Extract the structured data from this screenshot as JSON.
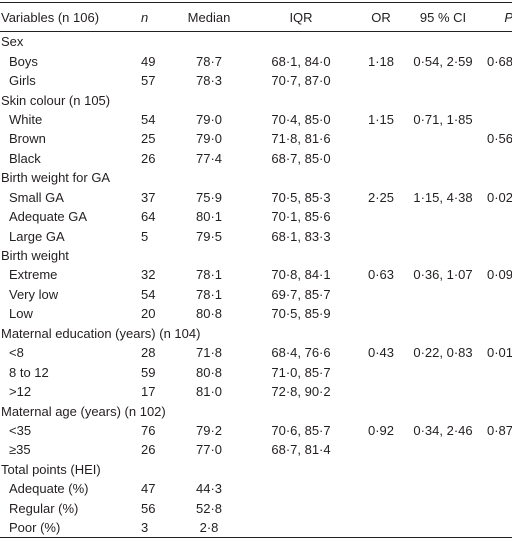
{
  "table": {
    "header": [
      "Variables (n 106)",
      "n",
      "Median",
      "IQR",
      "OR",
      "95 % CI",
      "P"
    ],
    "rows": [
      {
        "label": "Sex"
      },
      {
        "label": "Boys",
        "n": "49",
        "median": "78·7",
        "iqr": "68·1, 84·0",
        "or": "1·18",
        "ci": "0·54, 2·59",
        "p": "0·68"
      },
      {
        "label": "Girls",
        "n": "57",
        "median": "78·3",
        "iqr": "70·7, 87·0"
      },
      {
        "label": "Skin colour (n 105)"
      },
      {
        "label": "White",
        "n": "54",
        "median": "79·0",
        "iqr": "70·4, 85·0",
        "or": "1·15",
        "ci": "0·71, 1·85"
      },
      {
        "label": "Brown",
        "n": "25",
        "median": "79·0",
        "iqr": "71·8, 81·6",
        "p": "0·56"
      },
      {
        "label": "Black",
        "n": "26",
        "median": "77·4",
        "iqr": "68·7, 85·0"
      },
      {
        "label": "Birth weight for GA"
      },
      {
        "label": "Small GA",
        "n": "37",
        "median": "75·9",
        "iqr": "70·5, 85·3",
        "or": "2·25",
        "ci": "1·15, 4·38",
        "p": "0·02"
      },
      {
        "label": "Adequate GA",
        "n": "64",
        "median": "80·1",
        "iqr": "70·1, 85·6"
      },
      {
        "label": "Large GA",
        "n": "5",
        "median": "79·5",
        "iqr": "68·1, 83·3"
      },
      {
        "label": "Birth weight"
      },
      {
        "label": "Extreme",
        "n": "32",
        "median": "78·1",
        "iqr": "70·8, 84·1",
        "or": "0·63",
        "ci": "0·36, 1·07",
        "p": "0·09"
      },
      {
        "label": "Very low",
        "n": "54",
        "median": "78·1",
        "iqr": "69·7, 85·7"
      },
      {
        "label": "Low",
        "n": "20",
        "median": "80·8",
        "iqr": "70·5, 85·9"
      },
      {
        "label": "Maternal education (years) (n 104)"
      },
      {
        "label": "<8",
        "n": "28",
        "median": "71·8",
        "iqr": "68·4, 76·6",
        "or": "0·43",
        "ci": "0·22, 0·83",
        "p": "0·01"
      },
      {
        "label": "8 to 12",
        "n": "59",
        "median": "80·8",
        "iqr": "71·0, 85·7"
      },
      {
        "label": ">12",
        "n": "17",
        "median": "81·0",
        "iqr": "72·8, 90·2"
      },
      {
        "label": "Maternal age (years) (n 102)"
      },
      {
        "label": "<35",
        "n": "76",
        "median": "79·2",
        "iqr": "70·6, 85·7",
        "or": "0·92",
        "ci": "0·34, 2·46",
        "p": "0·87"
      },
      {
        "label": "≥35",
        "n": "26",
        "median": "77·0",
        "iqr": "68·7, 81·4"
      },
      {
        "label": "Total points (HEI)"
      },
      {
        "label": "Adequate (%)",
        "n": "47",
        "median": "44·3"
      },
      {
        "label": "Regular (%)",
        "n": "56",
        "median": "52·8"
      },
      {
        "label": "Poor (%)",
        "n": "3",
        "median": "2·8"
      }
    ]
  }
}
